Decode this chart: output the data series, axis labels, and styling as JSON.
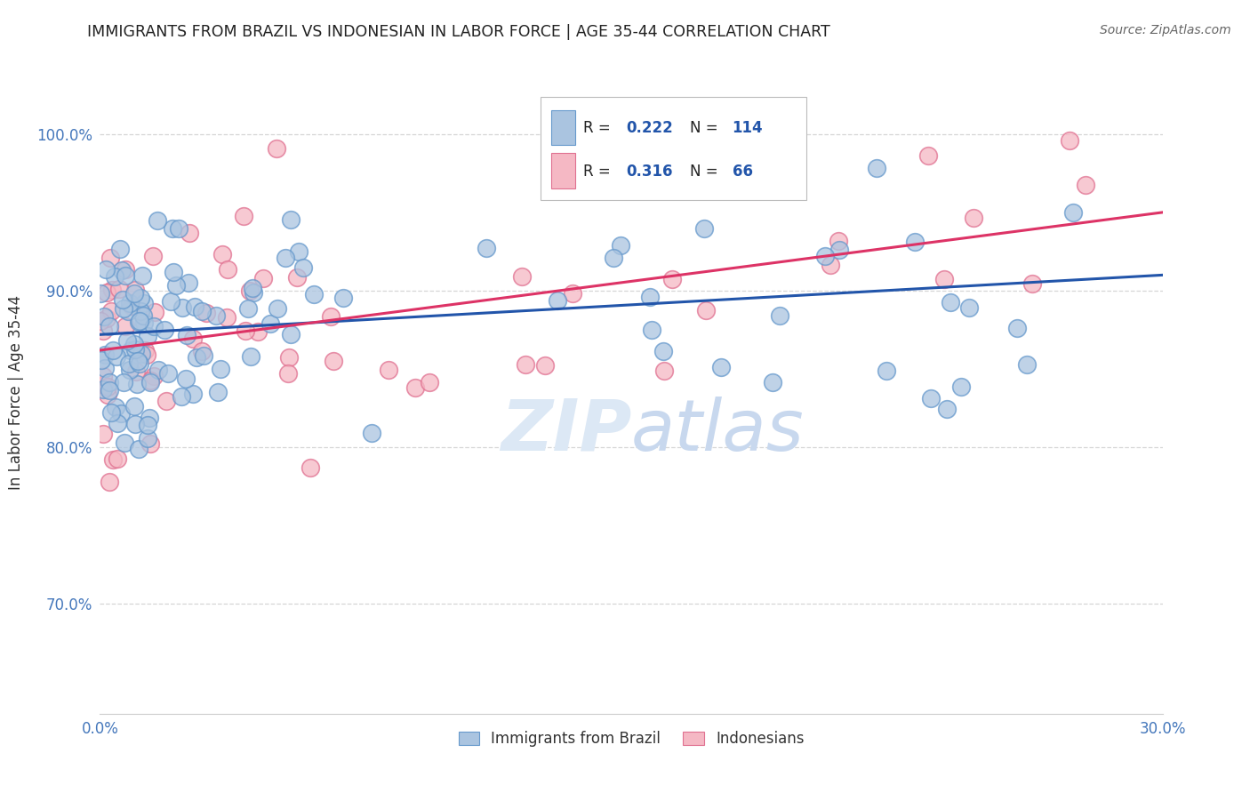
{
  "title": "IMMIGRANTS FROM BRAZIL VS INDONESIAN IN LABOR FORCE | AGE 35-44 CORRELATION CHART",
  "source": "Source: ZipAtlas.com",
  "ylabel": "In Labor Force | Age 35-44",
  "xlim": [
    0.0,
    0.3
  ],
  "ylim": [
    0.63,
    1.04
  ],
  "yticks": [
    0.7,
    0.8,
    0.9,
    1.0
  ],
  "ytick_labels": [
    "70.0%",
    "80.0%",
    "90.0%",
    "100.0%"
  ],
  "xticks": [
    0.0,
    0.05,
    0.1,
    0.15,
    0.2,
    0.25,
    0.3
  ],
  "xtick_labels_visible": [
    "0.0%",
    "",
    "",
    "",
    "",
    "",
    "30.0%"
  ],
  "brazil_color": "#aac4e0",
  "brazil_edge": "#6699cc",
  "indonesia_color": "#f5b8c4",
  "indonesia_edge": "#e07090",
  "brazil_R": 0.222,
  "brazil_N": 114,
  "indonesia_R": 0.316,
  "indonesia_N": 66,
  "brazil_line_color": "#2255aa",
  "indonesia_line_color": "#dd3366",
  "legend_color": "#2255aa",
  "axis_color": "#4477bb",
  "grid_color": "#cccccc",
  "watermark_color": "#dce8f5",
  "title_color": "#222222",
  "brazil_line_x0": 0.0,
  "brazil_line_y0": 0.872,
  "brazil_line_x1": 0.3,
  "brazil_line_y1": 0.91,
  "indonesia_line_x0": 0.0,
  "indonesia_line_y0": 0.862,
  "indonesia_line_x1": 0.3,
  "indonesia_line_y1": 0.95
}
